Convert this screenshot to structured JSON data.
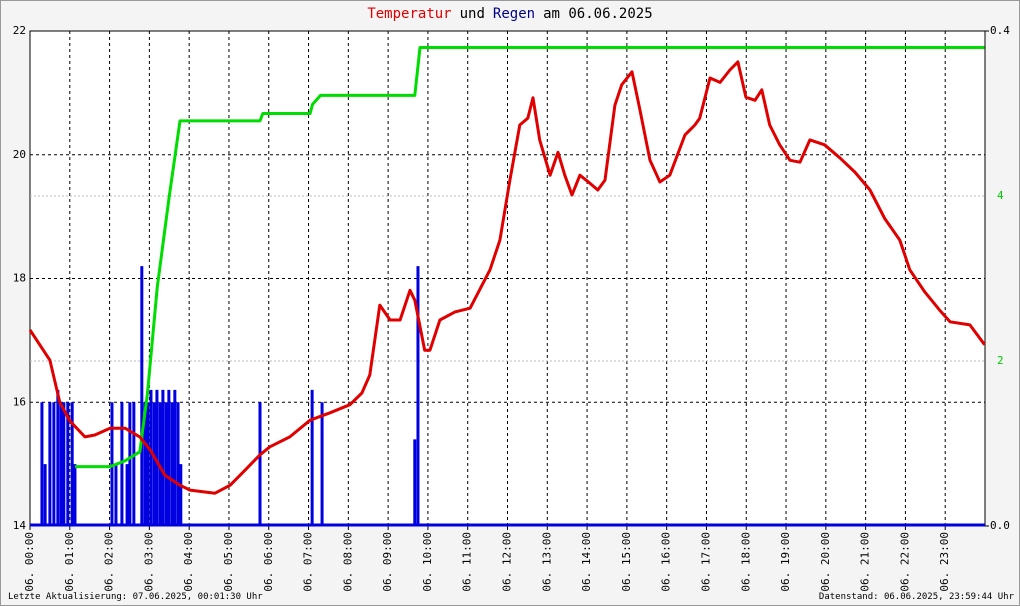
{
  "chart_data": {
    "type": "line",
    "title_parts": [
      {
        "text": "Temperatur",
        "color": "#e00000"
      },
      {
        "text": "und",
        "color": "#000000"
      },
      {
        "text": "Regen",
        "color": "#000080"
      },
      {
        "text": "am 06.06.2025",
        "color": "#000000"
      }
    ],
    "footer_left": "Letzte Aktualisierung: 07.06.2025, 00:01:30 Uhr",
    "footer_right": "Datenstand: 06.06.2025, 23:59:44 Uhr",
    "grid": true,
    "xlim": [
      0,
      24
    ],
    "xticks": [
      {
        "value": 0,
        "label": "06. 00:00"
      },
      {
        "value": 1,
        "label": "06. 01:00"
      },
      {
        "value": 2,
        "label": "06. 02:00"
      },
      {
        "value": 3,
        "label": "06. 03:00"
      },
      {
        "value": 4,
        "label": "06. 04:00"
      },
      {
        "value": 5,
        "label": "06. 05:00"
      },
      {
        "value": 6,
        "label": "06. 06:00"
      },
      {
        "value": 7,
        "label": "06. 07:00"
      },
      {
        "value": 8,
        "label": "06. 08:00"
      },
      {
        "value": 9,
        "label": "06. 09:00"
      },
      {
        "value": 10,
        "label": "06. 10:00"
      },
      {
        "value": 11,
        "label": "06. 11:00"
      },
      {
        "value": 12,
        "label": "06. 12:00"
      },
      {
        "value": 13,
        "label": "06. 13:00"
      },
      {
        "value": 14,
        "label": "06. 14:00"
      },
      {
        "value": 15,
        "label": "06. 15:00"
      },
      {
        "value": 16,
        "label": "06. 16:00"
      },
      {
        "value": 17,
        "label": "06. 17:00"
      },
      {
        "value": 18,
        "label": "06. 18:00"
      },
      {
        "value": 19,
        "label": "06. 19:00"
      },
      {
        "value": 20,
        "label": "06. 20:00"
      },
      {
        "value": 21,
        "label": "06. 21:00"
      },
      {
        "value": 22,
        "label": "06. 22:00"
      },
      {
        "value": 23,
        "label": "06. 23:00"
      }
    ],
    "ylim": [
      14,
      22
    ],
    "yticks": [
      14,
      16,
      18,
      20,
      22
    ],
    "y2lim": [
      0,
      0.4
    ],
    "y2ticks": [
      {
        "value": 0,
        "label": "0.0"
      },
      0.4
    ],
    "y3lim": [
      0,
      6
    ],
    "y3ticks": [
      2,
      4
    ],
    "y3color": "#00cc00",
    "series": [
      {
        "type": "line",
        "axis": "y",
        "color": "#e00000",
        "x": [
          0,
          0.5,
          0.75,
          1.0,
          1.38,
          1.63,
          2.01,
          2.39,
          2.76,
          3.02,
          3.39,
          3.77,
          4.02,
          4.65,
          5.03,
          5.4,
          5.78,
          6.03,
          6.53,
          7.04,
          7.54,
          8.04,
          8.34,
          8.54,
          8.79,
          9.05,
          9.3,
          9.55,
          9.67,
          9.92,
          10.05,
          10.3,
          10.68,
          11.06,
          11.56,
          11.81,
          12.06,
          12.31,
          12.51,
          12.64,
          12.81,
          13.07,
          13.27,
          13.44,
          13.62,
          13.82,
          14.07,
          14.27,
          14.45,
          14.7,
          14.87,
          15.13,
          15.33,
          15.58,
          15.83,
          16.08,
          16.46,
          16.71,
          16.83,
          17.09,
          17.34,
          17.59,
          17.79,
          17.99,
          18.22,
          18.39,
          18.59,
          18.84,
          19.1,
          19.35,
          19.6,
          19.97,
          20.35,
          20.73,
          21.11,
          21.48,
          21.86,
          22.11,
          22.49,
          22.86,
          23.12,
          23.62,
          23.99
        ],
        "values": [
          17.17,
          16.68,
          16.0,
          15.7,
          15.44,
          15.47,
          15.58,
          15.58,
          15.44,
          15.23,
          14.82,
          14.66,
          14.58,
          14.53,
          14.66,
          14.9,
          15.15,
          15.28,
          15.44,
          15.71,
          15.83,
          15.96,
          16.15,
          16.44,
          17.57,
          17.33,
          17.33,
          17.81,
          17.65,
          16.84,
          16.84,
          17.33,
          17.46,
          17.52,
          18.14,
          18.62,
          19.59,
          20.48,
          20.59,
          20.92,
          20.24,
          19.67,
          20.04,
          19.67,
          19.35,
          19.67,
          19.54,
          19.43,
          19.59,
          20.8,
          21.13,
          21.34,
          20.72,
          19.91,
          19.56,
          19.67,
          20.32,
          20.48,
          20.59,
          21.24,
          21.17,
          21.37,
          21.5,
          20.93,
          20.88,
          21.05,
          20.48,
          20.16,
          19.91,
          19.88,
          20.24,
          20.16,
          19.95,
          19.72,
          19.43,
          18.97,
          18.62,
          18.14,
          17.78,
          17.49,
          17.3,
          17.25,
          16.93
        ]
      },
      {
        "type": "bar",
        "axis": "y2",
        "color": "#0000e0",
        "x": [
          0.3,
          0.38,
          0.5,
          0.6,
          0.7,
          0.78,
          0.85,
          0.95,
          1.06,
          1.13,
          2.06,
          2.16,
          2.31,
          2.44,
          2.51,
          2.61,
          2.81,
          2.89,
          2.96,
          3.04,
          3.12,
          3.19,
          3.27,
          3.34,
          3.42,
          3.49,
          3.57,
          3.64,
          3.72,
          3.79,
          5.78,
          7.09,
          7.34,
          9.67,
          9.75
        ],
        "values": [
          0.1,
          0.05,
          0.1,
          0.1,
          0.11,
          0.1,
          0.1,
          0.1,
          0.1,
          0.05,
          0.1,
          0.05,
          0.1,
          0.05,
          0.1,
          0.1,
          0.21,
          0.1,
          0.1,
          0.11,
          0.1,
          0.11,
          0.1,
          0.11,
          0.1,
          0.11,
          0.1,
          0.11,
          0.1,
          0.05,
          0.1,
          0.11,
          0.1,
          0.07,
          0.21
        ]
      },
      {
        "type": "line",
        "axis": "y3",
        "color": "#00dd00",
        "x": [
          1.13,
          2.01,
          2.39,
          2.76,
          2.95,
          3.2,
          3.5,
          3.77,
          5.78,
          5.85,
          7.04,
          7.1,
          7.3,
          9.67,
          9.8,
          23.99
        ],
        "values": [
          0.72,
          0.72,
          0.79,
          0.9,
          1.6,
          2.9,
          4.0,
          4.91,
          4.91,
          5.0,
          5.0,
          5.11,
          5.22,
          5.22,
          5.8,
          5.8
        ]
      }
    ]
  }
}
